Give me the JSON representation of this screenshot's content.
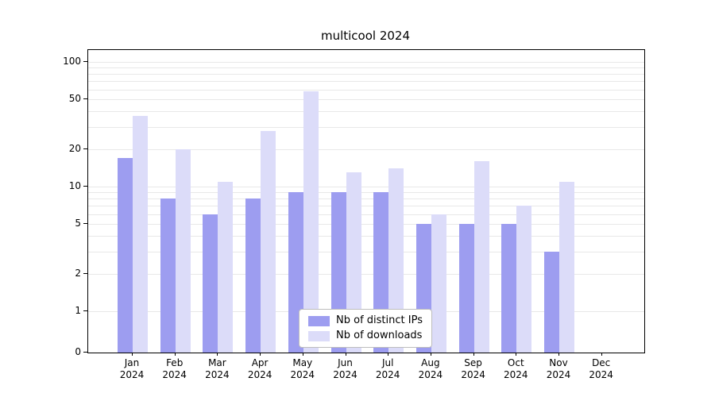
{
  "title": "multicool 2024",
  "chart_data": {
    "type": "bar",
    "title": "multicool 2024",
    "categories": [
      "Jan",
      "Feb",
      "Mar",
      "Apr",
      "May",
      "Jun",
      "Jul",
      "Aug",
      "Sep",
      "Oct",
      "Nov",
      "Dec"
    ],
    "year_label": "2024",
    "series": [
      {
        "name": "Nb of distinct IPs",
        "color": "#9d9df0",
        "values": [
          17,
          8,
          6,
          8,
          9,
          9,
          9,
          5,
          5,
          5,
          3,
          0
        ]
      },
      {
        "name": "Nb of downloads",
        "color": "#dcdcf9",
        "values": [
          37,
          20,
          11,
          28,
          58,
          13,
          14,
          6,
          16,
          7,
          11,
          0
        ]
      }
    ],
    "y_ticks": [
      0,
      1,
      2,
      5,
      10,
      20,
      50,
      100
    ],
    "y_gridlines": [
      1,
      2,
      3,
      4,
      5,
      6,
      7,
      8,
      9,
      10,
      20,
      30,
      40,
      50,
      60,
      70,
      80,
      90,
      100
    ],
    "y_scale": "symlog",
    "ylim": [
      0,
      125
    ],
    "xlabel": "",
    "ylabel": "",
    "grid": true,
    "legend_position": "lower center"
  }
}
